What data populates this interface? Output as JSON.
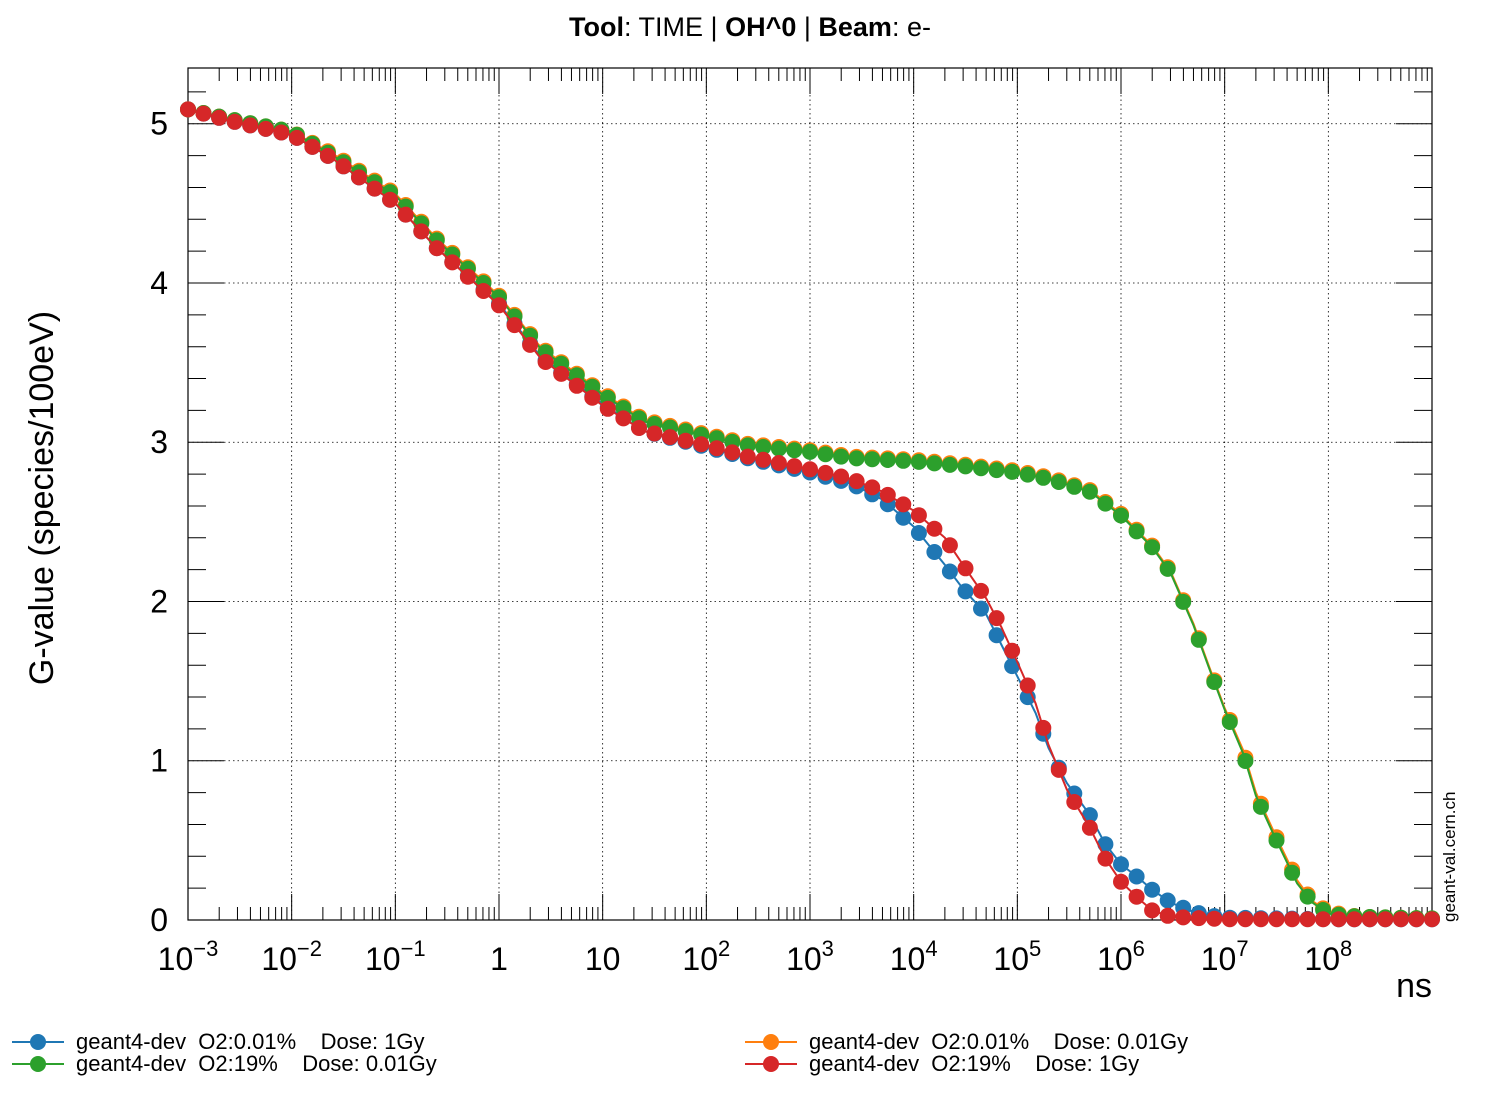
{
  "header": {
    "tool_key": "Tool",
    "tool_value": ": TIME | ",
    "species": "OH^0",
    "sep": " | ",
    "beam_key": "Beam",
    "beam_value": ": e-"
  },
  "credit": "geant-val.cern.ch",
  "chart_data": {
    "type": "line",
    "title": "Tool: TIME | OH^0 | Beam: e-",
    "xlabel": "ns",
    "ylabel": "G-value (species/100eV)",
    "xscale": "log",
    "xlim": [
      0.001,
      1000000000
    ],
    "ylim": [
      0,
      5.35
    ],
    "x_ticks": [
      {
        "mant": "10",
        "exp": "−3",
        "v": 0.001
      },
      {
        "mant": "10",
        "exp": "−2",
        "v": 0.01
      },
      {
        "mant": "10",
        "exp": "−1",
        "v": 0.1
      },
      {
        "mant": "1",
        "exp": "",
        "v": 1
      },
      {
        "mant": "10",
        "exp": "",
        "v": 10
      },
      {
        "mant": "10",
        "exp": "2",
        "v": 100
      },
      {
        "mant": "10",
        "exp": "3",
        "v": 1000
      },
      {
        "mant": "10",
        "exp": "4",
        "v": 10000
      },
      {
        "mant": "10",
        "exp": "5",
        "v": 100000
      },
      {
        "mant": "10",
        "exp": "6",
        "v": 1000000
      },
      {
        "mant": "10",
        "exp": "7",
        "v": 10000000
      },
      {
        "mant": "10",
        "exp": "8",
        "v": 100000000
      }
    ],
    "y_ticks": [
      "0",
      "1",
      "2",
      "3",
      "4",
      "5"
    ],
    "grid": true,
    "legend_position": "bottom",
    "series": [
      {
        "name": "geant4-dev  O2:0.01%    Dose: 1Gy",
        "color": "#1f77b4",
        "x": [
          0.001,
          0.0025,
          0.01,
          0.025,
          0.1,
          0.25,
          1,
          2.5,
          10,
          25,
          100,
          250,
          1000,
          2500,
          5000,
          10000,
          20000,
          30000,
          50000,
          70000,
          100000,
          150000,
          200000,
          300000,
          500000,
          700000,
          1000000,
          1500000,
          2000000,
          3000000,
          5000000,
          7000000,
          10000000,
          100000000,
          1000000000
        ],
        "y": [
          5.09,
          5.02,
          4.93,
          4.78,
          4.5,
          4.22,
          3.87,
          3.54,
          3.24,
          3.07,
          2.97,
          2.9,
          2.81,
          2.74,
          2.64,
          2.47,
          2.23,
          2.08,
          1.92,
          1.73,
          1.53,
          1.3,
          1.08,
          0.86,
          0.66,
          0.48,
          0.35,
          0.26,
          0.19,
          0.11,
          0.05,
          0.03,
          0.015,
          0.005,
          0.005
        ]
      },
      {
        "name": "geant4-dev  O2:0.01%    Dose: 0.01Gy",
        "color": "#ff7f0e",
        "x": [
          0.001,
          0.0025,
          0.01,
          0.025,
          0.1,
          0.25,
          1,
          2.5,
          10,
          25,
          100,
          250,
          1000,
          2500,
          10000,
          30000,
          100000,
          200000,
          500000,
          1000000,
          2000000,
          3000000,
          5000000,
          7000000,
          10000000,
          15000000,
          20000000,
          30000000,
          50000000,
          70000000,
          100000000,
          200000000,
          1000000000
        ],
        "y": [
          5.09,
          5.03,
          4.95,
          4.81,
          4.56,
          4.28,
          3.92,
          3.6,
          3.31,
          3.14,
          3.05,
          2.99,
          2.95,
          2.91,
          2.89,
          2.86,
          2.82,
          2.78,
          2.7,
          2.55,
          2.35,
          2.19,
          1.86,
          1.6,
          1.33,
          1.07,
          0.8,
          0.55,
          0.25,
          0.12,
          0.05,
          0.02,
          0.01
        ]
      },
      {
        "name": "geant4-dev  O2:19%    Dose: 0.01Gy",
        "color": "#2ca02c",
        "x": [
          0.001,
          0.0025,
          0.01,
          0.025,
          0.1,
          0.25,
          1,
          2.5,
          10,
          25,
          100,
          250,
          1000,
          2500,
          10000,
          30000,
          100000,
          200000,
          500000,
          1000000,
          2000000,
          3000000,
          5000000,
          7000000,
          10000000,
          15000000,
          20000000,
          30000000,
          50000000,
          70000000,
          100000000,
          200000000,
          1000000000
        ],
        "y": [
          5.09,
          5.03,
          4.95,
          4.8,
          4.55,
          4.27,
          3.91,
          3.59,
          3.3,
          3.13,
          3.04,
          2.98,
          2.94,
          2.9,
          2.88,
          2.85,
          2.81,
          2.77,
          2.69,
          2.54,
          2.34,
          2.18,
          1.85,
          1.59,
          1.32,
          1.05,
          0.78,
          0.53,
          0.23,
          0.11,
          0.04,
          0.02,
          0.01
        ]
      },
      {
        "name": "geant4-dev  O2:19%    Dose: 1Gy",
        "color": "#d62728",
        "x": [
          0.001,
          0.0025,
          0.01,
          0.025,
          0.1,
          0.25,
          1,
          2.5,
          10,
          25,
          100,
          250,
          1000,
          2500,
          5000,
          10000,
          20000,
          30000,
          50000,
          70000,
          100000,
          150000,
          200000,
          300000,
          500000,
          700000,
          1000000,
          1500000,
          2000000,
          3000000,
          10000000,
          100000000,
          1000000000
        ],
        "y": [
          5.09,
          5.02,
          4.93,
          4.78,
          4.5,
          4.22,
          3.86,
          3.53,
          3.23,
          3.07,
          2.98,
          2.91,
          2.83,
          2.77,
          2.69,
          2.57,
          2.4,
          2.23,
          2.02,
          1.84,
          1.62,
          1.36,
          1.1,
          0.82,
          0.58,
          0.39,
          0.24,
          0.13,
          0.06,
          0.02,
          0.005,
          0.005,
          0.005
        ]
      }
    ]
  }
}
